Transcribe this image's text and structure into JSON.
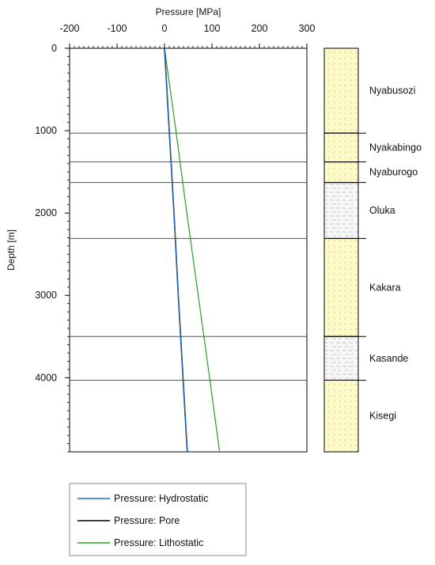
{
  "chart_data": {
    "type": "line",
    "title": "",
    "xlabel": "Pressure [MPa]",
    "ylabel": "Depth [m]",
    "xlim": [
      -200,
      300
    ],
    "ylim": [
      0,
      4900
    ],
    "x_ticks": [
      "-200",
      "-100",
      "0",
      "100",
      "200",
      "300"
    ],
    "y_ticks": [
      "0",
      "1000",
      "2000",
      "3000",
      "4000"
    ],
    "y_inverted": true,
    "x_axis_position": "top",
    "series": [
      {
        "name": "Pressure: Hydrostatic",
        "color": "#1f6fc9",
        "points": [
          [
            0,
            0
          ],
          [
            10,
            1000
          ],
          [
            20,
            2000
          ],
          [
            29,
            3000
          ],
          [
            39,
            4000
          ],
          [
            48,
            4900
          ]
        ]
      },
      {
        "name": "Pressure: Pore",
        "color": "#000000",
        "points": [
          [
            0,
            0
          ],
          [
            10,
            1000
          ],
          [
            20,
            2000
          ],
          [
            29,
            3000
          ],
          [
            39,
            4000
          ],
          [
            48,
            4900
          ]
        ]
      },
      {
        "name": "Pressure: Lithostatic",
        "color": "#2a9d2a",
        "points": [
          [
            0,
            0
          ],
          [
            24,
            1000
          ],
          [
            47,
            2000
          ],
          [
            71,
            3000
          ],
          [
            95,
            4000
          ],
          [
            116,
            4900
          ]
        ]
      }
    ],
    "formation_tops": [
      1030,
      1380,
      1630,
      2310,
      3500,
      4030
    ],
    "formations": [
      {
        "name": "Nyabusozi",
        "top": 0,
        "bottom": 1030,
        "lithology": "sand"
      },
      {
        "name": "Nyakabingo",
        "top": 1030,
        "bottom": 1380,
        "lithology": "sand"
      },
      {
        "name": "Nyaburogo",
        "top": 1380,
        "bottom": 1630,
        "lithology": "sand"
      },
      {
        "name": "Oluka",
        "top": 1630,
        "bottom": 2310,
        "lithology": "shale"
      },
      {
        "name": "Kakara",
        "top": 2310,
        "bottom": 3500,
        "lithology": "sand"
      },
      {
        "name": "Kasande",
        "top": 3500,
        "bottom": 4030,
        "lithology": "shale"
      },
      {
        "name": "Kisegi",
        "top": 4030,
        "bottom": 4900,
        "lithology": "sand"
      }
    ],
    "legend_position": "bottom"
  },
  "colors": {
    "sand_fill": "#fcfac8",
    "sand_dot": "#ddd070",
    "shale_fill": "#f7f7f7",
    "shale_dash": "#b5b5b5",
    "grid_line": "#555555"
  }
}
